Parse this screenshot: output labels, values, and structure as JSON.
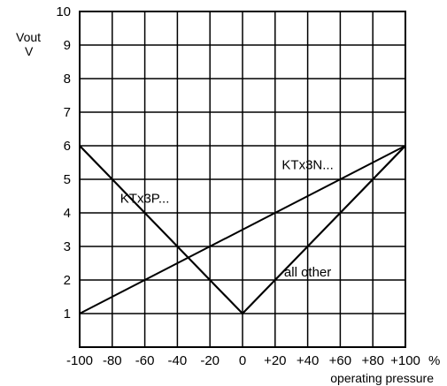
{
  "chart_data": {
    "type": "line",
    "title": "",
    "xlabel": "operating pressure",
    "ylabel_line1": "Vout",
    "ylabel_line2": "V",
    "xlim": [
      -100,
      100
    ],
    "ylim": [
      0,
      10
    ],
    "grid": true,
    "x_tick_values": [
      -100,
      -80,
      -60,
      -40,
      -20,
      0,
      20,
      40,
      60,
      80,
      100
    ],
    "x_tick_labels": [
      "-100",
      "-80",
      "-60",
      "-40",
      "-20",
      "0",
      "+20",
      "+40",
      "+60",
      "+80",
      "+100"
    ],
    "x_unit": "%",
    "y_tick_values": [
      1,
      2,
      3,
      4,
      5,
      6,
      7,
      8,
      9,
      10
    ],
    "y_tick_labels": [
      "1",
      "2",
      "3",
      "4",
      "5",
      "6",
      "7",
      "8",
      "9",
      "10"
    ],
    "series": [
      {
        "name": "KTx3N...",
        "x": [
          -100,
          100
        ],
        "y": [
          1,
          6
        ],
        "label_at": [
          40,
          5.3
        ]
      },
      {
        "name": "KTx3P...",
        "x": [
          -100,
          0,
          100
        ],
        "y": [
          6,
          1,
          6
        ],
        "label_at": [
          -60,
          4.3
        ]
      },
      {
        "name": "all other",
        "x": [
          -100,
          0,
          100
        ],
        "y": [
          6,
          1,
          6
        ],
        "label_at": [
          40,
          2.1
        ]
      }
    ]
  }
}
